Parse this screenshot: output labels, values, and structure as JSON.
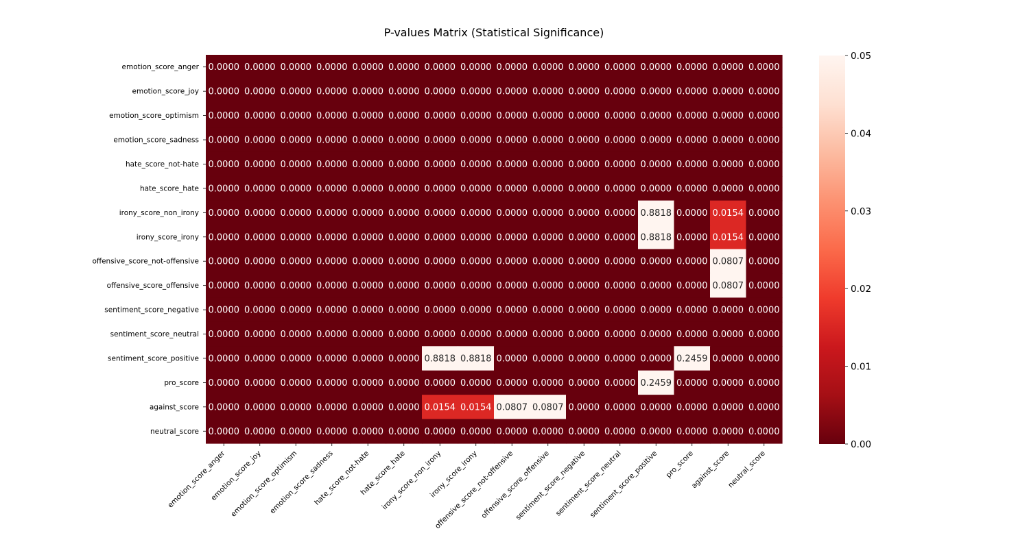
{
  "chart_data": {
    "type": "heatmap",
    "title": "P-values Matrix (Statistical Significance)",
    "xlabel": "",
    "ylabel": "",
    "labels": [
      "emotion_score_anger",
      "emotion_score_joy",
      "emotion_score_optimism",
      "emotion_score_sadness",
      "hate_score_not-hate",
      "hate_score_hate",
      "irony_score_non_irony",
      "irony_score_irony",
      "offensive_score_not-offensive",
      "offensive_score_offensive",
      "sentiment_score_negative",
      "sentiment_score_neutral",
      "sentiment_score_positive",
      "pro_score",
      "against_score",
      "neutral_score"
    ],
    "values": [
      [
        0,
        0,
        0,
        0,
        0,
        0,
        0,
        0,
        0,
        0,
        0,
        0,
        0,
        0,
        0,
        0
      ],
      [
        0,
        0,
        0,
        0,
        0,
        0,
        0,
        0,
        0,
        0,
        0,
        0,
        0,
        0,
        0,
        0
      ],
      [
        0,
        0,
        0,
        0,
        0,
        0,
        0,
        0,
        0,
        0,
        0,
        0,
        0,
        0,
        0,
        0
      ],
      [
        0,
        0,
        0,
        0,
        0,
        0,
        0,
        0,
        0,
        0,
        0,
        0,
        0,
        0,
        0,
        0
      ],
      [
        0,
        0,
        0,
        0,
        0,
        0,
        0,
        0,
        0,
        0,
        0,
        0,
        0,
        0,
        0,
        0
      ],
      [
        0,
        0,
        0,
        0,
        0,
        0,
        0,
        0,
        0,
        0,
        0,
        0,
        0,
        0,
        0,
        0
      ],
      [
        0,
        0,
        0,
        0,
        0,
        0,
        0,
        0,
        0,
        0,
        0,
        0,
        0.8818,
        0,
        0.0154,
        0
      ],
      [
        0,
        0,
        0,
        0,
        0,
        0,
        0,
        0,
        0,
        0,
        0,
        0,
        0.8818,
        0,
        0.0154,
        0
      ],
      [
        0,
        0,
        0,
        0,
        0,
        0,
        0,
        0,
        0,
        0,
        0,
        0,
        0,
        0,
        0.0807,
        0
      ],
      [
        0,
        0,
        0,
        0,
        0,
        0,
        0,
        0,
        0,
        0,
        0,
        0,
        0,
        0,
        0.0807,
        0
      ],
      [
        0,
        0,
        0,
        0,
        0,
        0,
        0,
        0,
        0,
        0,
        0,
        0,
        0,
        0,
        0,
        0
      ],
      [
        0,
        0,
        0,
        0,
        0,
        0,
        0,
        0,
        0,
        0,
        0,
        0,
        0,
        0,
        0,
        0
      ],
      [
        0,
        0,
        0,
        0,
        0,
        0,
        0.8818,
        0.8818,
        0,
        0,
        0,
        0,
        0,
        0.2459,
        0,
        0
      ],
      [
        0,
        0,
        0,
        0,
        0,
        0,
        0,
        0,
        0,
        0,
        0,
        0,
        0.2459,
        0,
        0,
        0
      ],
      [
        0,
        0,
        0,
        0,
        0,
        0,
        0.0154,
        0.0154,
        0.0807,
        0.0807,
        0,
        0,
        0,
        0,
        0,
        0
      ],
      [
        0,
        0,
        0,
        0,
        0,
        0,
        0,
        0,
        0,
        0,
        0,
        0,
        0,
        0,
        0,
        0
      ]
    ],
    "value_format": "4 decimals",
    "colormap": "Reds_r",
    "color_range": [
      0,
      0.05
    ],
    "colorbar_ticks": [
      "0.00",
      "0.01",
      "0.02",
      "0.03",
      "0.04",
      "0.05"
    ],
    "colors": {
      "low": "#67000d",
      "high": "#fff5f0"
    }
  }
}
